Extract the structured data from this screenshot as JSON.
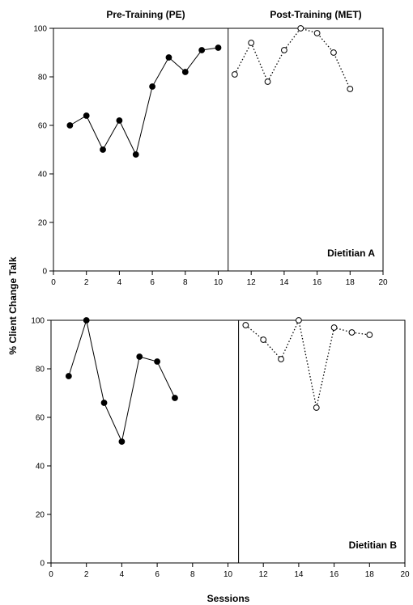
{
  "chart_data": {
    "type": "line",
    "xlabel": "Sessions",
    "ylabel": "% Client Change Talk",
    "phase_labels": [
      "Pre-Training (PE)",
      "Post-Training (MET)"
    ],
    "panels": [
      {
        "name": "Dietitian A",
        "xlim": [
          0,
          20
        ],
        "ylim": [
          0,
          100
        ],
        "xticks": [
          0,
          2,
          4,
          6,
          8,
          10,
          12,
          14,
          16,
          18,
          20
        ],
        "yticks": [
          0,
          20,
          40,
          60,
          80,
          100
        ],
        "phase_change_x": 10.6,
        "series": [
          {
            "phase": "Pre-Training (PE)",
            "marker": "filled-circle",
            "line": "solid",
            "x": [
              1,
              2,
              3,
              4,
              5,
              6,
              7,
              8,
              9,
              10
            ],
            "y": [
              60,
              64,
              50,
              62,
              48,
              76,
              88,
              82,
              91,
              92
            ]
          },
          {
            "phase": "Post-Training (MET)",
            "marker": "open-circle",
            "line": "dotted",
            "x": [
              11,
              12,
              13,
              14,
              15,
              16,
              17,
              18
            ],
            "y": [
              81,
              94,
              78,
              91,
              100,
              98,
              90,
              75
            ]
          }
        ]
      },
      {
        "name": "Dietitian B",
        "xlim": [
          0,
          20
        ],
        "ylim": [
          0,
          100
        ],
        "xticks": [
          0,
          2,
          4,
          6,
          8,
          10,
          12,
          14,
          16,
          18,
          20
        ],
        "yticks": [
          0,
          20,
          40,
          60,
          80,
          100
        ],
        "phase_change_x": 10.6,
        "series": [
          {
            "phase": "Pre-Training (PE)",
            "marker": "filled-circle",
            "line": "solid",
            "x": [
              1,
              2,
              3,
              4,
              5,
              6,
              7
            ],
            "y": [
              77,
              100,
              66,
              50,
              85,
              83,
              68
            ]
          },
          {
            "phase": "Post-Training (MET)",
            "marker": "open-circle",
            "line": "dotted",
            "x": [
              11,
              12,
              13,
              14,
              15,
              16,
              17,
              18
            ],
            "y": [
              98,
              92,
              84,
              100,
              64,
              97,
              95,
              94
            ]
          }
        ]
      }
    ]
  }
}
